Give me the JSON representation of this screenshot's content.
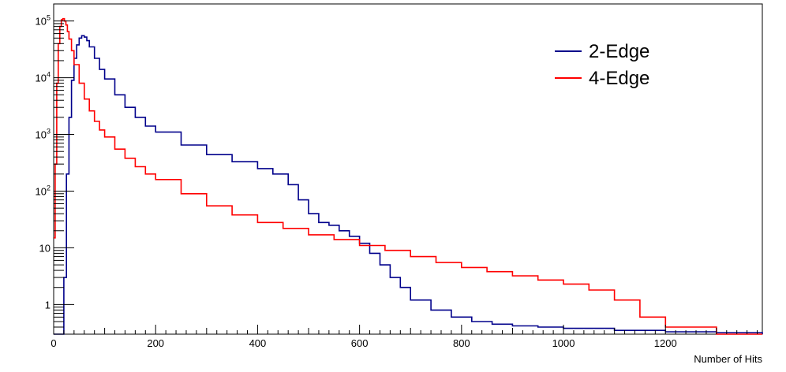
{
  "chart_data": {
    "type": "line",
    "style": "step-histogram",
    "title": "",
    "xlabel": "Number of Hits",
    "ylabel": "",
    "xlim": [
      0,
      1390
    ],
    "ylim": [
      0.3,
      200000
    ],
    "y_scale": "log",
    "grid": false,
    "legend_position": "top-right",
    "x_ticks": [
      0,
      200,
      400,
      600,
      800,
      1000,
      1200
    ],
    "x_tick_labels": [
      "0",
      "200",
      "400",
      "600",
      "800",
      "1000",
      "1200"
    ],
    "y_ticks": [
      1,
      10,
      100,
      1000,
      10000,
      100000
    ],
    "y_tick_labels": [
      {
        "base": "1",
        "exp": ""
      },
      {
        "base": "10",
        "exp": ""
      },
      {
        "base": "10",
        "exp": "2"
      },
      {
        "base": "10",
        "exp": "3"
      },
      {
        "base": "10",
        "exp": "4"
      },
      {
        "base": "10",
        "exp": "5"
      }
    ],
    "series": [
      {
        "name": "2-Edge",
        "color": "#00008b",
        "x": [
          0,
          10,
          15,
          20,
          25,
          30,
          35,
          40,
          45,
          50,
          55,
          60,
          65,
          70,
          80,
          90,
          100,
          120,
          140,
          160,
          180,
          200,
          250,
          300,
          350,
          400,
          430,
          460,
          480,
          500,
          520,
          540,
          560,
          580,
          600,
          620,
          640,
          660,
          680,
          700,
          740,
          780,
          820,
          860,
          900,
          950,
          1000,
          1100,
          1200,
          1300,
          1390
        ],
        "y": [
          0.3,
          0.3,
          0.3,
          3,
          200,
          2000,
          9000,
          22000,
          38000,
          50000,
          55000,
          52000,
          45000,
          35000,
          22000,
          14000,
          9500,
          5000,
          3000,
          2000,
          1400,
          1100,
          650,
          440,
          330,
          250,
          200,
          130,
          70,
          40,
          28,
          25,
          20,
          16,
          12,
          8,
          5,
          3,
          2,
          1.2,
          0.8,
          0.6,
          0.5,
          0.45,
          0.42,
          0.4,
          0.38,
          0.35,
          0.33,
          0.32,
          0.3
        ]
      },
      {
        "name": "4-Edge",
        "color": "#ff0000",
        "x": [
          0,
          3,
          6,
          9,
          12,
          15,
          18,
          21,
          24,
          27,
          30,
          35,
          40,
          50,
          60,
          70,
          80,
          90,
          100,
          120,
          140,
          160,
          180,
          200,
          250,
          300,
          350,
          400,
          450,
          500,
          550,
          600,
          650,
          700,
          750,
          800,
          850,
          900,
          950,
          1000,
          1050,
          1100,
          1150,
          1200,
          1300,
          1390
        ],
        "y": [
          15,
          300,
          8000,
          40000,
          80000,
          105000,
          110000,
          100000,
          85000,
          65000,
          48000,
          30000,
          17000,
          8000,
          4200,
          2600,
          1700,
          1200,
          900,
          550,
          380,
          270,
          200,
          160,
          90,
          55,
          38,
          28,
          22,
          17,
          14,
          11,
          9,
          7,
          5.5,
          4.5,
          3.8,
          3.2,
          2.7,
          2.3,
          1.8,
          1.2,
          0.6,
          0.4,
          0.3,
          0.3
        ]
      }
    ]
  }
}
